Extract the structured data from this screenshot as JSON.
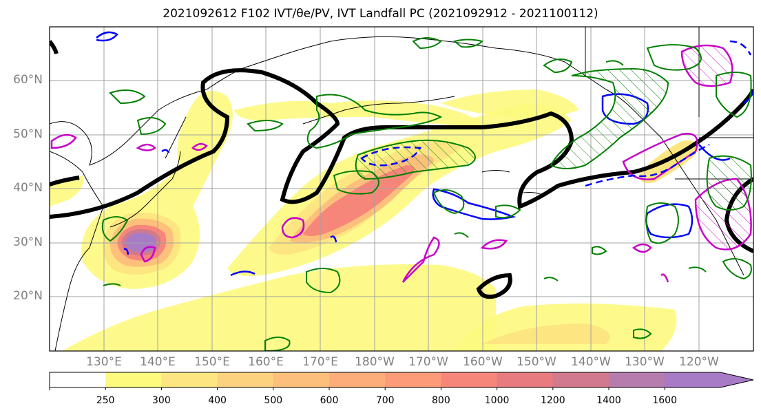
{
  "title": "2021092612 F102 IVT/θe/PV, IVT Landfall PC (2021092912 - 2021100112)",
  "map": {
    "projection": "Plate Carree, Pacific-centered",
    "extent_lon": [
      120,
      250
    ],
    "extent_lat": [
      10,
      70
    ],
    "lat_labels": [
      "60°N",
      "50°N",
      "40°N",
      "30°N",
      "20°N"
    ],
    "lon_labels": [
      "130°E",
      "140°E",
      "150°E",
      "160°E",
      "170°E",
      "180°W",
      "170°W",
      "160°W",
      "150°W",
      "140°W",
      "130°W",
      "120°W"
    ],
    "gridlines": true,
    "coastlines": true
  },
  "colorbar": {
    "levels": [
      "250",
      "300",
      "400",
      "500",
      "600",
      "700",
      "800",
      "1000",
      "1200",
      "1400",
      "1600"
    ],
    "colors": [
      "#ffffff",
      "#fdfa7e",
      "#fde681",
      "#fdd27e",
      "#fdc07c",
      "#fdad7a",
      "#fd9b79",
      "#f7867a",
      "#e77b7f",
      "#d17a8e",
      "#b67cae",
      "#a77bc6"
    ],
    "extend": "max"
  },
  "legend_colors": {
    "pv_contour": "#000000",
    "theta_e_positive": "#c800c8",
    "theta_e_negative": "#0000ff",
    "landfall_pc": "#008000"
  }
}
